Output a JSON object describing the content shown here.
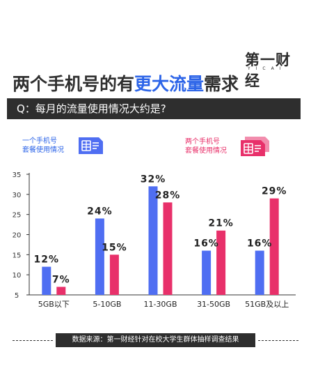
{
  "logo": {
    "main": "第一财经",
    "sub": "YICAI"
  },
  "header": {
    "title_prefix": "两个手机号的有",
    "title_highlight": "更大流量",
    "title_suffix": "需求"
  },
  "question": "Q：每月的流量使用情况大约是?",
  "legend": {
    "blue": {
      "line1": "一个手机号",
      "line2": "套餐使用情况",
      "icon": "sim-card-icon"
    },
    "pink": {
      "line1": "两个手机号",
      "line2": "套餐使用情况",
      "icon": "double-sim-card-icon"
    }
  },
  "colors": {
    "blue": "#4f6ef2",
    "pink": "#e8306a",
    "axis": "#333333"
  },
  "chart_data": {
    "type": "bar",
    "title": "",
    "xlabel": "",
    "ylabel": "",
    "categories": [
      "5GB以下",
      "5-10GB",
      "11-30GB",
      "31-50GB",
      "51GB及以上"
    ],
    "series": [
      {
        "legend": "blue",
        "values": [
          12,
          24,
          32,
          16,
          16
        ],
        "labels": [
          "12%",
          "24%",
          "32%",
          "16%",
          "16%"
        ]
      },
      {
        "legend": "pink",
        "values": [
          7,
          15,
          28,
          21,
          29
        ],
        "labels": [
          "7%",
          "15%",
          "28%",
          "21%",
          "29%"
        ]
      }
    ],
    "ylim": [
      5,
      35
    ],
    "yticks": [
      "5",
      "10",
      "15",
      "20",
      "25",
      "30",
      "35"
    ],
    "grid": false
  },
  "footer": {
    "source": "数据来源：第一财经针对在校大学生群体抽样调查结果"
  }
}
